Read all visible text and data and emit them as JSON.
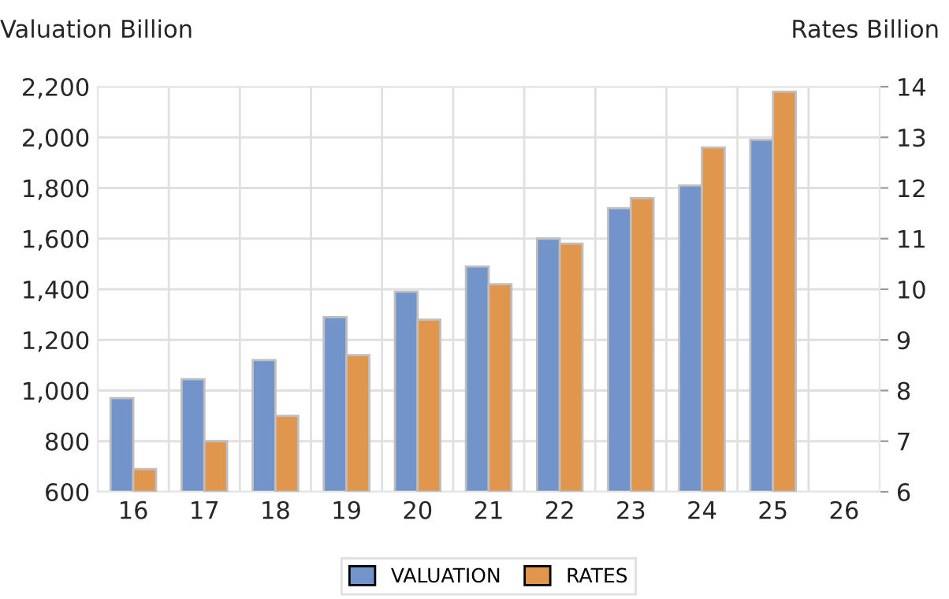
{
  "chart_data": {
    "type": "bar",
    "ylabel": "Valuation Billion",
    "y2label": "Rates Billion",
    "categories": [
      "16",
      "17",
      "18",
      "19",
      "20",
      "21",
      "22",
      "23",
      "24",
      "25",
      "26"
    ],
    "series": [
      {
        "name": "VALUATION",
        "color": "#7294cb",
        "values": [
          970,
          1045,
          1120,
          1290,
          1390,
          1490,
          1600,
          1720,
          1810,
          1990,
          null
        ]
      },
      {
        "name": "RATES",
        "color": "#e0964d",
        "axis": "y2",
        "values": [
          6.45,
          7.0,
          7.5,
          8.7,
          9.4,
          10.1,
          10.9,
          11.8,
          12.8,
          13.9,
          null
        ]
      }
    ],
    "ylim": [
      600,
      2200
    ],
    "yticks": [
      {
        "value": 600,
        "label": "600"
      },
      {
        "value": 800,
        "label": "800"
      },
      {
        "value": 1000,
        "label": "1,000"
      },
      {
        "value": 1200,
        "label": "1,200"
      },
      {
        "value": 1400,
        "label": "1,400"
      },
      {
        "value": 1600,
        "label": "1,600"
      },
      {
        "value": 1800,
        "label": "1,800"
      },
      {
        "value": 2000,
        "label": "2,000"
      },
      {
        "value": 2200,
        "label": "2,200"
      }
    ],
    "y2lim": [
      6,
      14
    ],
    "y2ticks": [
      6,
      7,
      8,
      9,
      10,
      11,
      12,
      13,
      14
    ],
    "grid": true,
    "legend": "bottom"
  }
}
